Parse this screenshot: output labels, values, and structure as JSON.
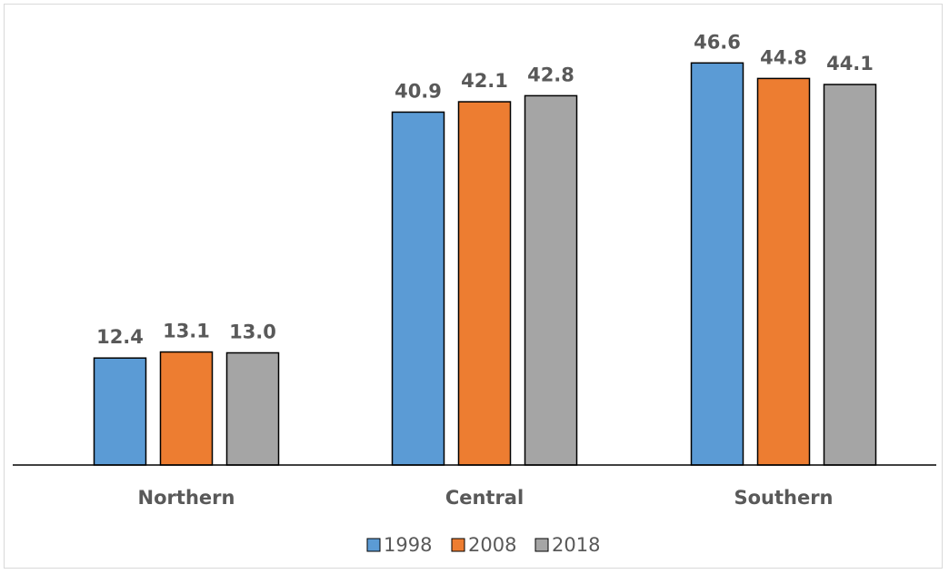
{
  "chart_data": {
    "type": "bar",
    "categories": [
      "Northern",
      "Central",
      "Southern"
    ],
    "series": [
      {
        "name": "1998",
        "values": [
          12.4,
          40.9,
          46.6
        ],
        "color": "#5B9BD5"
      },
      {
        "name": "2008",
        "values": [
          13.1,
          42.1,
          44.8
        ],
        "color": "#ED7D31"
      },
      {
        "name": "2018",
        "values": [
          13.0,
          42.8,
          44.1
        ],
        "color": "#A5A5A5"
      }
    ],
    "title": "",
    "xlabel": "",
    "ylabel": "",
    "ylim": [
      0,
      50
    ],
    "grid": false,
    "legend_position": "bottom",
    "value_labels": [
      "12.4",
      "13.1",
      "13.0",
      "40.9",
      "42.1",
      "42.8",
      "46.6",
      "44.8",
      "44.1"
    ]
  }
}
